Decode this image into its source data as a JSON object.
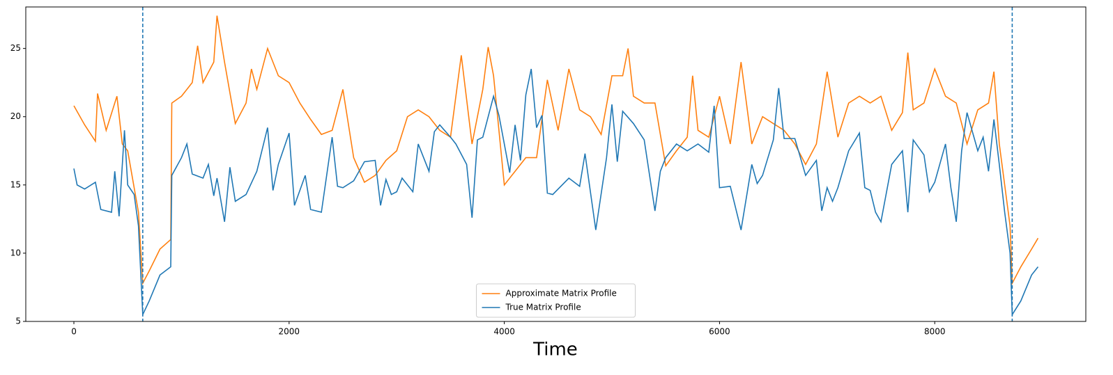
{
  "chart_data": {
    "type": "line",
    "xlabel": "Time",
    "xlim": [
      -447,
      9404
    ],
    "ylim": [
      5,
      28.04
    ],
    "xticks": [
      0,
      2000,
      4000,
      6000,
      8000
    ],
    "yticks": [
      5,
      10,
      15,
      20,
      25
    ],
    "vlines": [
      640,
      8720
    ],
    "vline_color": "#1f77b4",
    "legend": "lower center",
    "series": [
      {
        "name": "Approximate Matrix Profile",
        "color": "#ff7f0e",
        "x": [
          0,
          100,
          200,
          220,
          300,
          400,
          450,
          500,
          600,
          640,
          700,
          800,
          900,
          910,
          1000,
          1100,
          1150,
          1200,
          1300,
          1330,
          1400,
          1500,
          1600,
          1650,
          1700,
          1800,
          1900,
          2000,
          2100,
          2200,
          2300,
          2400,
          2500,
          2600,
          2700,
          2800,
          2900,
          3000,
          3100,
          3200,
          3300,
          3400,
          3500,
          3600,
          3700,
          3800,
          3850,
          3900,
          4000,
          4100,
          4200,
          4300,
          4400,
          4500,
          4600,
          4700,
          4800,
          4900,
          5000,
          5100,
          5150,
          5200,
          5300,
          5400,
          5500,
          5600,
          5700,
          5750,
          5800,
          5900,
          6000,
          6100,
          6200,
          6300,
          6400,
          6500,
          6600,
          6700,
          6800,
          6900,
          7000,
          7100,
          7200,
          7300,
          7400,
          7500,
          7600,
          7700,
          7750,
          7800,
          7900,
          8000,
          8100,
          8200,
          8300,
          8400,
          8500,
          8550,
          8600,
          8700,
          8720,
          8800,
          8900,
          8960
        ],
        "values": [
          20.8,
          19.4,
          18.2,
          21.7,
          19,
          21.5,
          18,
          17.5,
          13,
          7.8,
          8.7,
          10.3,
          11,
          21,
          21.5,
          22.5,
          25.2,
          22.5,
          24,
          27.4,
          24,
          19.5,
          21,
          23.5,
          22,
          25,
          23,
          22.5,
          21,
          19.8,
          18.7,
          19,
          22,
          17,
          15.2,
          15.7,
          16.8,
          17.5,
          20,
          20.5,
          20,
          19,
          18.5,
          24.5,
          18,
          22,
          25.1,
          23,
          15,
          16,
          17,
          17,
          22.7,
          19,
          23.5,
          20.5,
          20,
          18.7,
          23,
          23,
          25,
          21.5,
          21,
          21,
          16.4,
          17.5,
          18.5,
          23,
          19,
          18.5,
          21.5,
          18,
          24,
          18,
          20,
          19.5,
          19,
          18,
          16.5,
          18,
          23.3,
          18.5,
          21,
          21.5,
          21,
          21.5,
          19,
          20.3,
          24.7,
          20.5,
          21,
          23.5,
          21.5,
          21,
          18,
          20.5,
          21,
          23.3,
          18,
          12,
          7.8,
          9,
          10.3,
          11.1
        ]
      },
      {
        "name": "True Matrix Profile",
        "color": "#1f77b4",
        "x": [
          0,
          30,
          100,
          200,
          250,
          350,
          380,
          420,
          470,
          500,
          560,
          600,
          640,
          700,
          800,
          900,
          910,
          1000,
          1050,
          1100,
          1200,
          1250,
          1300,
          1330,
          1400,
          1450,
          1500,
          1600,
          1700,
          1800,
          1850,
          1900,
          2000,
          2050,
          2150,
          2200,
          2300,
          2400,
          2450,
          2500,
          2600,
          2700,
          2800,
          2850,
          2900,
          2950,
          3000,
          3050,
          3150,
          3200,
          3300,
          3350,
          3400,
          3500,
          3550,
          3650,
          3700,
          3750,
          3800,
          3900,
          3950,
          4050,
          4100,
          4150,
          4200,
          4250,
          4300,
          4350,
          4400,
          4450,
          4600,
          4700,
          4750,
          4850,
          4950,
          5000,
          5050,
          5100,
          5200,
          5300,
          5400,
          5450,
          5500,
          5600,
          5700,
          5800,
          5900,
          5950,
          6000,
          6100,
          6200,
          6300,
          6350,
          6400,
          6500,
          6550,
          6600,
          6700,
          6800,
          6900,
          6950,
          7000,
          7050,
          7100,
          7200,
          7300,
          7350,
          7400,
          7450,
          7500,
          7600,
          7700,
          7750,
          7800,
          7900,
          7950,
          8000,
          8100,
          8150,
          8200,
          8250,
          8300,
          8400,
          8450,
          8500,
          8550,
          8600,
          8650,
          8700,
          8720,
          8800,
          8900,
          8960
        ],
        "values": [
          16.2,
          15,
          14.7,
          15.2,
          13.2,
          13,
          16,
          12.7,
          19,
          15,
          14.3,
          12,
          5.5,
          6.5,
          8.4,
          9,
          15.7,
          17,
          18,
          15.8,
          15.5,
          16.5,
          14.2,
          15.5,
          12.3,
          16.3,
          13.8,
          14.3,
          16,
          19.2,
          14.6,
          16.5,
          18.8,
          13.5,
          15.7,
          13.2,
          13,
          18.5,
          14.9,
          14.8,
          15.3,
          16.7,
          16.8,
          13.5,
          15.4,
          14.3,
          14.5,
          15.5,
          14.5,
          18,
          16,
          18.9,
          19.4,
          18.5,
          18,
          16.5,
          12.6,
          18.3,
          18.5,
          21.5,
          20.1,
          15.9,
          19.4,
          16.8,
          21.6,
          23.5,
          19.2,
          20.1,
          14.4,
          14.3,
          15.5,
          14.9,
          17.3,
          11.7,
          17,
          20.9,
          16.7,
          20.4,
          19.5,
          18.3,
          13.1,
          16,
          17,
          18,
          17.5,
          18,
          17.4,
          20.8,
          14.8,
          14.9,
          11.7,
          16.5,
          15.1,
          15.7,
          18.3,
          22.1,
          18.4,
          18.4,
          15.7,
          16.8,
          13.1,
          14.8,
          13.8,
          14.8,
          17.5,
          18.8,
          14.8,
          14.6,
          13,
          12.3,
          16.5,
          17.5,
          13,
          18.3,
          17.2,
          14.5,
          15.2,
          18,
          14.8,
          12.3,
          17.5,
          20.3,
          17.5,
          18.5,
          16,
          19.8,
          16.5,
          13,
          10,
          5.5,
          6.5,
          8.4,
          9
        ]
      }
    ]
  }
}
